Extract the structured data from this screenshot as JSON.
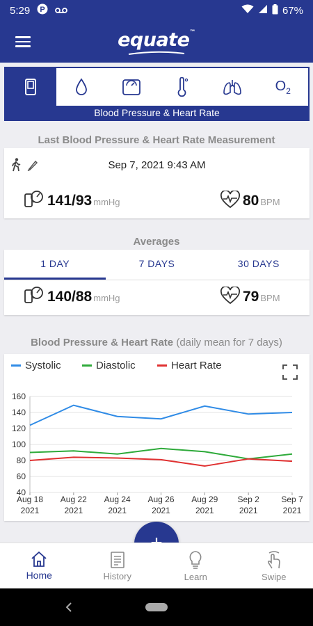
{
  "status": {
    "time": "5:29",
    "battery": "67%"
  },
  "app": {
    "logo_text": "equate",
    "logo_tm": "™"
  },
  "tabs": {
    "items": [
      {
        "icon": "bp-monitor-icon"
      },
      {
        "icon": "blood-drop-icon"
      },
      {
        "icon": "scale-icon"
      },
      {
        "icon": "thermometer-icon"
      },
      {
        "icon": "lungs-icon"
      },
      {
        "icon": "oxygen-icon",
        "text": "O"
      }
    ],
    "active_label": "Blood Pressure & Heart Rate"
  },
  "last": {
    "title": "Last Blood Pressure & Heart Rate Measurement",
    "datetime": "Sep 7, 2021 9:43 AM",
    "bp": "141/93",
    "bp_unit": "mmHg",
    "hr": "80",
    "hr_unit": "BPM"
  },
  "averages": {
    "title": "Averages",
    "periods": [
      "1 DAY",
      "7 DAYS",
      "30 DAYS"
    ],
    "bp": "140/88",
    "bp_unit": "mmHg",
    "hr": "79",
    "hr_unit": "BPM"
  },
  "chart_section": {
    "title": "Blood Pressure & Heart Rate",
    "subtitle": "(daily mean for 7 days)"
  },
  "chart_data": {
    "type": "line",
    "categories": [
      "Aug 18 2021",
      "Aug 22 2021",
      "Aug 24 2021",
      "Aug 26 2021",
      "Aug 29 2021",
      "Sep 2 2021",
      "Sep 7 2021"
    ],
    "x_labels": [
      [
        "Aug 18",
        "2021"
      ],
      [
        "Aug 22",
        "2021"
      ],
      [
        "Aug 24",
        "2021"
      ],
      [
        "Aug 26",
        "2021"
      ],
      [
        "Aug 29",
        "2021"
      ],
      [
        "Sep 2",
        "2021"
      ],
      [
        "Sep 7",
        "2021"
      ]
    ],
    "series": [
      {
        "name": "Systolic",
        "color": "#2f8be6",
        "values": [
          124,
          149,
          135,
          132,
          148,
          138,
          140
        ]
      },
      {
        "name": "Diastolic",
        "color": "#2eaa3a",
        "values": [
          90,
          92,
          88,
          95,
          91,
          82,
          88
        ]
      },
      {
        "name": "Heart Rate",
        "color": "#e03030",
        "values": [
          80,
          84,
          83,
          81,
          73,
          82,
          79
        ]
      }
    ],
    "ylim": [
      40,
      160
    ],
    "yticks": [
      40,
      60,
      80,
      100,
      120,
      140,
      160
    ],
    "grid": true,
    "legend": "top-left"
  },
  "nav": {
    "items": [
      {
        "label": "Home"
      },
      {
        "label": "History"
      },
      {
        "label": "Learn"
      },
      {
        "label": "Swipe"
      }
    ]
  },
  "fab": {
    "label": "+"
  }
}
